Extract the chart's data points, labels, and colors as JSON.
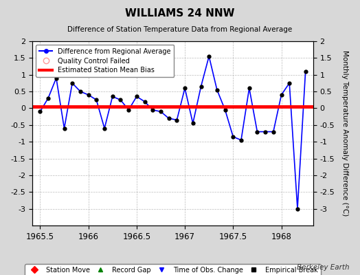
{
  "title": "WILLIAMS 24 NNW",
  "subtitle": "Difference of Station Temperature Data from Regional Average",
  "ylabel": "Monthly Temperature Anomaly Difference (°C)",
  "bias_value": 0.05,
  "xlim": [
    1965.42,
    1968.33
  ],
  "ylim": [
    -3.5,
    2.0
  ],
  "yticks": [
    -3.0,
    -2.5,
    -2.0,
    -1.5,
    -1.0,
    -0.5,
    0.0,
    0.5,
    1.0,
    1.5,
    2.0
  ],
  "xticks": [
    1965.5,
    1966.0,
    1966.5,
    1967.0,
    1967.5,
    1968.0
  ],
  "xtick_labels": [
    "1965.5",
    "1966",
    "1966.5",
    "1967",
    "1967.5",
    "1968"
  ],
  "background_color": "#d8d8d8",
  "plot_bg_color": "#ffffff",
  "line_color": "#0000ff",
  "bias_color": "#ff0000",
  "marker_color": "#000000",
  "x_data": [
    1965.5,
    1965.583,
    1965.667,
    1965.75,
    1965.833,
    1965.917,
    1966.0,
    1966.083,
    1966.167,
    1966.25,
    1966.333,
    1966.417,
    1966.5,
    1966.583,
    1966.667,
    1966.75,
    1966.833,
    1966.917,
    1967.0,
    1967.083,
    1967.167,
    1967.25,
    1967.333,
    1967.417,
    1967.5,
    1967.583,
    1967.667,
    1967.75,
    1967.833,
    1967.917,
    1968.0,
    1968.083,
    1968.167,
    1968.25
  ],
  "y_data": [
    -0.1,
    0.3,
    0.9,
    -0.6,
    0.75,
    0.5,
    0.4,
    0.25,
    -0.6,
    0.35,
    0.25,
    -0.05,
    0.35,
    0.2,
    -0.05,
    -0.1,
    -0.3,
    -0.35,
    0.6,
    -0.45,
    0.65,
    1.55,
    0.55,
    -0.05,
    -0.85,
    -0.95,
    0.6,
    -0.7,
    -0.7,
    -0.7,
    0.4,
    0.75,
    -3.0,
    1.1
  ],
  "berkeley_earth_text": "Berkeley Earth"
}
